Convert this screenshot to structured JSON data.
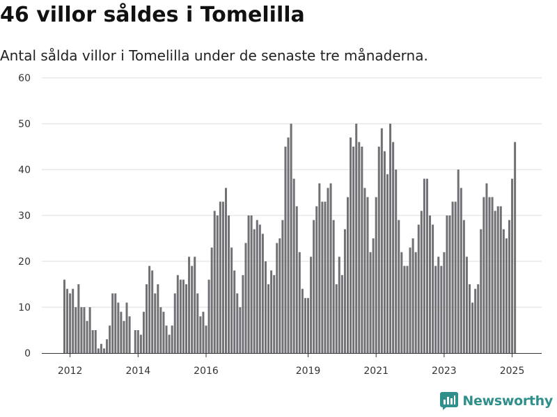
{
  "header": {
    "title": "46 villor såldes i Tomelilla",
    "subtitle": "Antal sålda villor i Tomelilla under de senaste tre månaderna."
  },
  "brand": {
    "name": "Newsworthy",
    "icon": "newsworthy-logo-icon"
  },
  "colors": {
    "bar": "#707075",
    "highlight": "#1a9c94",
    "grid": "#dddddd",
    "brand": "#2f8f8a"
  },
  "chart_data": {
    "type": "bar",
    "title": "46 villor såldes i Tomelilla",
    "subtitle": "Antal sålda villor i Tomelilla under de senaste tre månaderna.",
    "ylim": [
      0,
      60
    ],
    "yticks": [
      0,
      10,
      20,
      30,
      40,
      50,
      60
    ],
    "x_tick_labels": [
      {
        "label": "2012",
        "index": 2
      },
      {
        "label": "2014",
        "index": 26
      },
      {
        "label": "2016",
        "index": 50
      },
      {
        "label": "2019",
        "index": 86
      },
      {
        "label": "2021",
        "index": 110
      },
      {
        "label": "2023",
        "index": 134
      },
      {
        "label": "2025",
        "index": 158
      }
    ],
    "grid": true,
    "legend": "none",
    "highlight": {
      "index": 160,
      "label": "46"
    },
    "values": [
      16,
      14,
      13,
      14,
      10,
      15,
      10,
      10,
      7,
      10,
      5,
      5,
      1,
      2,
      1,
      3,
      6,
      13,
      13,
      11,
      9,
      7,
      11,
      8,
      0,
      5,
      5,
      4,
      9,
      15,
      19,
      18,
      13,
      15,
      10,
      9,
      6,
      4,
      6,
      13,
      17,
      16,
      16,
      15,
      21,
      19,
      21,
      13,
      8,
      9,
      6,
      16,
      23,
      31,
      30,
      33,
      33,
      36,
      30,
      23,
      18,
      13,
      10,
      17,
      24,
      30,
      30,
      27,
      29,
      28,
      26,
      20,
      15,
      18,
      17,
      24,
      25,
      29,
      45,
      47,
      50,
      38,
      32,
      22,
      14,
      12,
      12,
      21,
      29,
      32,
      37,
      33,
      33,
      36,
      37,
      29,
      15,
      21,
      17,
      27,
      34,
      47,
      45,
      50,
      46,
      45,
      36,
      34,
      22,
      25,
      34,
      45,
      49,
      44,
      39,
      50,
      46,
      40,
      29,
      22,
      19,
      19,
      23,
      25,
      22,
      28,
      31,
      38,
      38,
      30,
      28,
      19,
      21,
      19,
      22,
      30,
      30,
      33,
      33,
      40,
      36,
      29,
      21,
      15,
      11,
      14,
      15,
      27,
      34,
      37,
      34,
      34,
      31,
      32,
      32,
      27,
      25,
      29,
      38,
      46
    ]
  }
}
